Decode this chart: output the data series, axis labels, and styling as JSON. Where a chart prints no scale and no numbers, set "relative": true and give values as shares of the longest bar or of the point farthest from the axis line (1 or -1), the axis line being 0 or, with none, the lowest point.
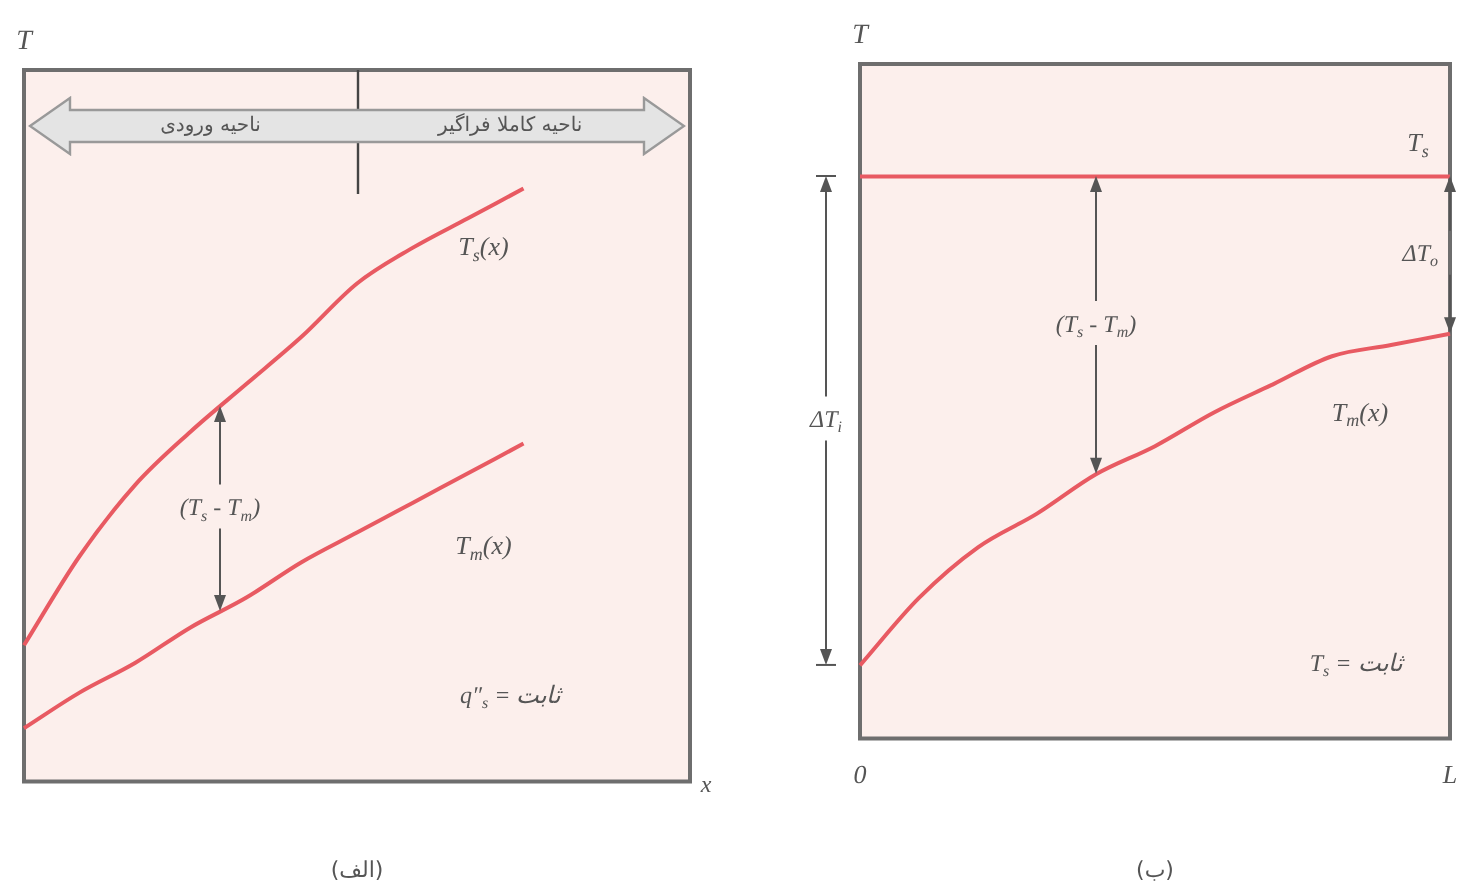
{
  "chart_data": [
    {
      "type": "line",
      "title": "(الف)",
      "xlabel": "x",
      "ylabel": "T",
      "relative": true,
      "categories": [
        null,
        null,
        null,
        null,
        null,
        null,
        null,
        null,
        null,
        null,
        null,
        null,
        null
      ],
      "series": [
        {
          "name": "T$_{s}$(x)",
          "color": "#e85a62",
          "values": [
            0.23,
            0.38,
            0.5,
            0.59,
            0.67,
            0.75,
            0.84,
            0.9,
            0.95,
            1.0,
            null,
            null,
            null
          ]
        },
        {
          "name": "T$_{m}$(x)",
          "color": "#e85a62",
          "values": [
            0.09,
            0.15,
            0.2,
            0.26,
            0.31,
            0.37,
            0.42,
            0.47,
            0.52,
            0.57,
            null,
            null,
            null
          ]
        }
      ],
      "annotations": [
        "ناحیه ورودی",
        "ناحیه کاملا فراگیر",
        "(T$_{s}$ - T$_{m}$)",
        "q″$_{s}$ = ثابت"
      ],
      "legend": false,
      "grid": false,
      "marker": "none",
      "line_style": "solid",
      "tick_labels": false
    },
    {
      "type": "line",
      "title": "(ب)",
      "ylabel": "T",
      "relative": true,
      "categories": [
        "0",
        null,
        null,
        null,
        null,
        null,
        null,
        null,
        null,
        null,
        "L"
      ],
      "series": [
        {
          "name": "T$_{s}$",
          "color": "#e85a62",
          "values": [
            1.0,
            1.0,
            1.0,
            1.0,
            1.0,
            1.0,
            1.0,
            1.0,
            1.0,
            1.0,
            1.0
          ]
        },
        {
          "name": "T$_{m}$(x)",
          "color": "#e85a62",
          "values": [
            0.13,
            0.25,
            0.34,
            0.4,
            0.47,
            0.52,
            0.58,
            0.63,
            0.68,
            0.7,
            0.72
          ]
        }
      ],
      "annotations": [
        "(T$_{s}$ - T$_{m}$)",
        "ΔT$_{o}$",
        "ΔT$_{i}$",
        "T$_{s}$ = ثابت"
      ],
      "legend": false,
      "grid": false,
      "marker": "none",
      "line_style": "solid",
      "tick_labels": "x"
    }
  ]
}
